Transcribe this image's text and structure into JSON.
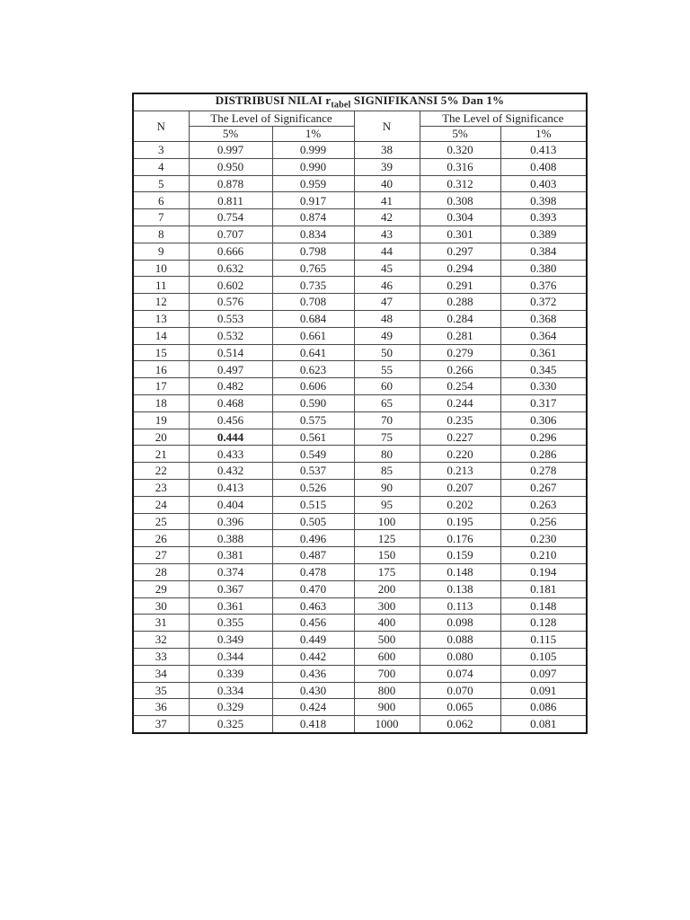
{
  "title": {
    "prefix": "DISTRIBUSI NILAI r",
    "subscript": "tabel",
    "suffix": " SIGNIFIKANSI 5% Dan 1%"
  },
  "table": {
    "header": {
      "n_label": "N",
      "group_label": "The Level of Significance",
      "col_5": "5%",
      "col_1": "1%"
    },
    "left_rows": [
      {
        "n": "3",
        "p5": "0.997",
        "p1": "0.999"
      },
      {
        "n": "4",
        "p5": "0.950",
        "p1": "0.990"
      },
      {
        "n": "5",
        "p5": "0.878",
        "p1": "0.959"
      },
      {
        "n": "6",
        "p5": "0.811",
        "p1": "0.917"
      },
      {
        "n": "7",
        "p5": "0.754",
        "p1": "0.874"
      },
      {
        "n": "8",
        "p5": "0.707",
        "p1": "0.834"
      },
      {
        "n": "9",
        "p5": "0.666",
        "p1": "0.798"
      },
      {
        "n": "10",
        "p5": "0.632",
        "p1": "0.765"
      },
      {
        "n": "11",
        "p5": "0.602",
        "p1": "0.735"
      },
      {
        "n": "12",
        "p5": "0.576",
        "p1": "0.708"
      },
      {
        "n": "13",
        "p5": "0.553",
        "p1": "0.684"
      },
      {
        "n": "14",
        "p5": "0.532",
        "p1": "0.661"
      },
      {
        "n": "15",
        "p5": "0.514",
        "p1": "0.641"
      },
      {
        "n": "16",
        "p5": "0.497",
        "p1": "0.623"
      },
      {
        "n": "17",
        "p5": "0.482",
        "p1": "0.606"
      },
      {
        "n": "18",
        "p5": "0.468",
        "p1": "0.590"
      },
      {
        "n": "19",
        "p5": "0.456",
        "p1": "0.575"
      },
      {
        "n": "20",
        "p5": "0.444",
        "p1": "0.561",
        "bold5": true
      },
      {
        "n": "21",
        "p5": "0.433",
        "p1": "0.549"
      },
      {
        "n": "22",
        "p5": "0.432",
        "p1": "0.537"
      },
      {
        "n": "23",
        "p5": "0.413",
        "p1": "0.526"
      },
      {
        "n": "24",
        "p5": "0.404",
        "p1": "0.515"
      },
      {
        "n": "25",
        "p5": "0.396",
        "p1": "0.505"
      },
      {
        "n": "26",
        "p5": "0.388",
        "p1": "0.496"
      },
      {
        "n": "27",
        "p5": "0.381",
        "p1": "0.487"
      },
      {
        "n": "28",
        "p5": "0.374",
        "p1": "0.478"
      },
      {
        "n": "29",
        "p5": "0.367",
        "p1": "0.470"
      },
      {
        "n": "30",
        "p5": "0.361",
        "p1": "0.463"
      },
      {
        "n": "31",
        "p5": "0.355",
        "p1": "0.456"
      },
      {
        "n": "32",
        "p5": "0.349",
        "p1": "0.449"
      },
      {
        "n": "33",
        "p5": "0.344",
        "p1": "0.442"
      },
      {
        "n": "34",
        "p5": "0.339",
        "p1": "0.436"
      },
      {
        "n": "35",
        "p5": "0.334",
        "p1": "0.430"
      },
      {
        "n": "36",
        "p5": "0.329",
        "p1": "0.424"
      },
      {
        "n": "37",
        "p5": "0.325",
        "p1": "0.418"
      }
    ],
    "right_rows": [
      {
        "n": "38",
        "p5": "0.320",
        "p1": "0.413"
      },
      {
        "n": "39",
        "p5": "0.316",
        "p1": "0.408"
      },
      {
        "n": "40",
        "p5": "0.312",
        "p1": "0.403"
      },
      {
        "n": "41",
        "p5": "0.308",
        "p1": "0.398"
      },
      {
        "n": "42",
        "p5": "0.304",
        "p1": "0.393"
      },
      {
        "n": "43",
        "p5": "0.301",
        "p1": "0.389"
      },
      {
        "n": "44",
        "p5": "0.297",
        "p1": "0.384"
      },
      {
        "n": "45",
        "p5": "0.294",
        "p1": "0.380"
      },
      {
        "n": "46",
        "p5": "0.291",
        "p1": "0.376"
      },
      {
        "n": "47",
        "p5": "0.288",
        "p1": "0.372"
      },
      {
        "n": "48",
        "p5": "0.284",
        "p1": "0.368"
      },
      {
        "n": "49",
        "p5": "0.281",
        "p1": "0.364"
      },
      {
        "n": "50",
        "p5": "0.279",
        "p1": "0.361"
      },
      {
        "n": "55",
        "p5": "0.266",
        "p1": "0.345"
      },
      {
        "n": "60",
        "p5": "0.254",
        "p1": "0.330"
      },
      {
        "n": "65",
        "p5": "0.244",
        "p1": "0.317"
      },
      {
        "n": "70",
        "p5": "0.235",
        "p1": "0.306"
      },
      {
        "n": "75",
        "p5": "0.227",
        "p1": "0.296"
      },
      {
        "n": "80",
        "p5": "0.220",
        "p1": "0.286"
      },
      {
        "n": "85",
        "p5": "0.213",
        "p1": "0.278"
      },
      {
        "n": "90",
        "p5": "0.207",
        "p1": "0.267"
      },
      {
        "n": "95",
        "p5": "0.202",
        "p1": "0.263"
      },
      {
        "n": "100",
        "p5": "0.195",
        "p1": "0.256"
      },
      {
        "n": "125",
        "p5": "0.176",
        "p1": "0.230"
      },
      {
        "n": "150",
        "p5": "0.159",
        "p1": "0.210"
      },
      {
        "n": "175",
        "p5": "0.148",
        "p1": "0.194"
      },
      {
        "n": "200",
        "p5": "0.138",
        "p1": "0.181"
      },
      {
        "n": "300",
        "p5": "0.113",
        "p1": "0.148"
      },
      {
        "n": "400",
        "p5": "0.098",
        "p1": "0.128"
      },
      {
        "n": "500",
        "p5": "0.088",
        "p1": "0.115"
      },
      {
        "n": "600",
        "p5": "0.080",
        "p1": "0.105"
      },
      {
        "n": "700",
        "p5": "0.074",
        "p1": "0.097"
      },
      {
        "n": "800",
        "p5": "0.070",
        "p1": "0.091"
      },
      {
        "n": "900",
        "p5": "0.065",
        "p1": "0.086"
      },
      {
        "n": "1000",
        "p5": "0.062",
        "p1": "0.081"
      }
    ]
  },
  "colors": {
    "page_background": "#ffffff",
    "border": "#161616",
    "text": "#232323"
  }
}
